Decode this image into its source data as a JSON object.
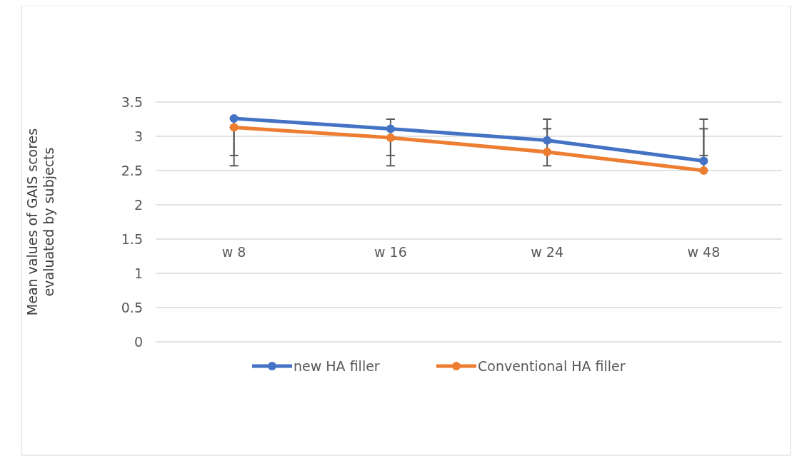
{
  "chart_data": {
    "type": "line",
    "ylabel": "Mean values of GAIS scores\nevaluated by subjects",
    "categories": [
      "w 8",
      "w 16",
      "w 24",
      "w 48"
    ],
    "series": [
      {
        "name": "new HA filler",
        "color": "#4472c4",
        "values": [
          3.26,
          3.11,
          2.94,
          2.64
        ],
        "errors": [
          [
            2.72,
            3.26
          ],
          [
            2.72,
            3.25
          ],
          [
            2.94,
            3.25
          ],
          [
            2.72,
            3.25
          ]
        ]
      },
      {
        "name": "Conventional HA filler",
        "color": "#ed7d31",
        "values": [
          3.13,
          2.98,
          2.77,
          2.5
        ],
        "errors": [
          [
            2.57,
            3.13
          ],
          [
            2.57,
            2.98
          ],
          [
            2.57,
            3.11
          ],
          [
            2.5,
            3.11
          ]
        ]
      }
    ],
    "ylim": [
      0,
      3.5
    ],
    "yticks": [
      0,
      0.5,
      1,
      1.5,
      2,
      2.5,
      3,
      3.5
    ],
    "grid": "y",
    "legend": "bottom",
    "marker": "circle",
    "line_style": "solid"
  }
}
